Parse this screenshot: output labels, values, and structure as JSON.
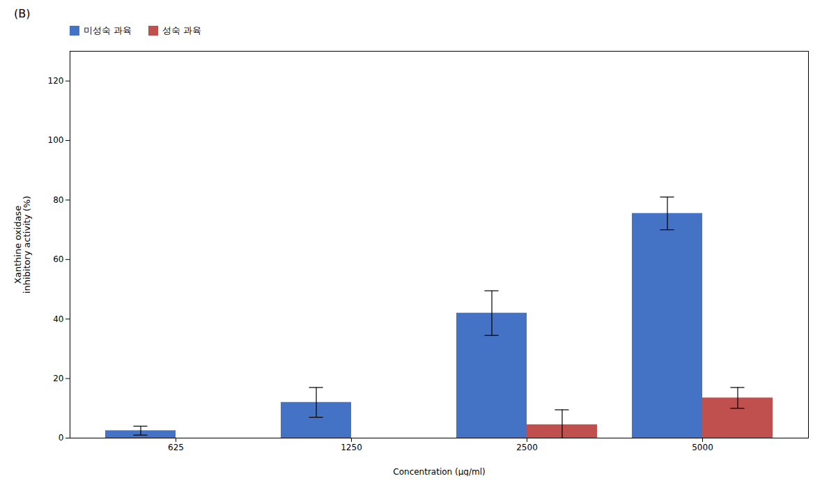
{
  "chart_data": {
    "type": "bar",
    "title": "(B)",
    "categories": [
      "625",
      "1250",
      "2500",
      "5000"
    ],
    "series": [
      {
        "name": "미성숙 과육",
        "color": "#4472C4",
        "values": [
          2.5,
          12.0,
          42.0,
          75.5
        ],
        "errors": [
          1.5,
          5.0,
          7.5,
          5.5
        ]
      },
      {
        "name": "성숙 과육",
        "color": "#C0504D",
        "values": [
          null,
          null,
          4.5,
          13.5
        ],
        "errors": [
          null,
          null,
          5.0,
          3.5
        ]
      }
    ],
    "xlabel": "Concentration (μg/ml)",
    "ylabel": "Xanthine oxidase\ninhibitory activity (%)",
    "ylim": [
      0,
      130
    ],
    "yticks": [
      0,
      20,
      40,
      60,
      80,
      100,
      120
    ],
    "legend": "upper left",
    "grid": false
  }
}
